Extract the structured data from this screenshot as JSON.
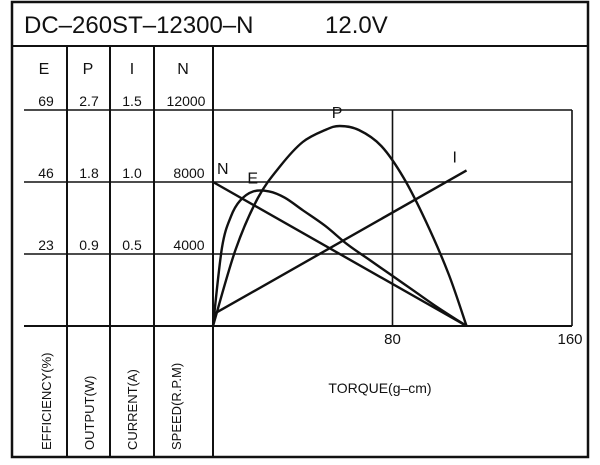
{
  "chart_data": {
    "type": "line",
    "title": "DC–260ST–12300–N",
    "voltage": "12.0V",
    "column_headers": [
      "E",
      "P",
      "I",
      "N"
    ],
    "scale_rows": [
      [
        "69",
        "2.7",
        "1.5",
        "12000"
      ],
      [
        "46",
        "1.8",
        "1.0",
        "8000"
      ],
      [
        "23",
        "0.9",
        "0.5",
        "4000"
      ]
    ],
    "axis_names": [
      "EFFICIENCY(%)",
      "OUTPUT(W)",
      "CURRENT(A)",
      "SPEED(R.P.M)"
    ],
    "xlabel": "TORQUE(g–cm)",
    "x_ticks": [
      "80",
      "160"
    ],
    "xlim": [
      0,
      160
    ],
    "series": [
      {
        "name": "N",
        "unit": "R.P.M",
        "ylim": [
          0,
          12000
        ],
        "x": [
          0,
          113
        ],
        "y": [
          8000,
          0
        ]
      },
      {
        "name": "I",
        "unit": "A",
        "ylim": [
          0,
          1.5
        ],
        "x": [
          0,
          113
        ],
        "y": [
          0.08,
          1.08
        ]
      },
      {
        "name": "P",
        "unit": "W",
        "ylim": [
          0,
          2.7
        ],
        "x": [
          0,
          10,
          20,
          30,
          40,
          50,
          56.5,
          65,
          75,
          85,
          95,
          105,
          113
        ],
        "y": [
          0,
          0.95,
          1.6,
          2.0,
          2.3,
          2.45,
          2.5,
          2.45,
          2.25,
          1.85,
          1.3,
          0.65,
          0
        ]
      },
      {
        "name": "E",
        "unit": "%",
        "ylim": [
          0,
          69
        ],
        "x": [
          0,
          4,
          8,
          12,
          18,
          25,
          32,
          40,
          50,
          60,
          70,
          80,
          90,
          100,
          113
        ],
        "y": [
          0,
          25,
          35,
          40,
          43,
          43,
          41,
          37,
          32,
          26,
          21,
          16,
          11,
          6,
          0
        ]
      }
    ],
    "grid": true
  }
}
